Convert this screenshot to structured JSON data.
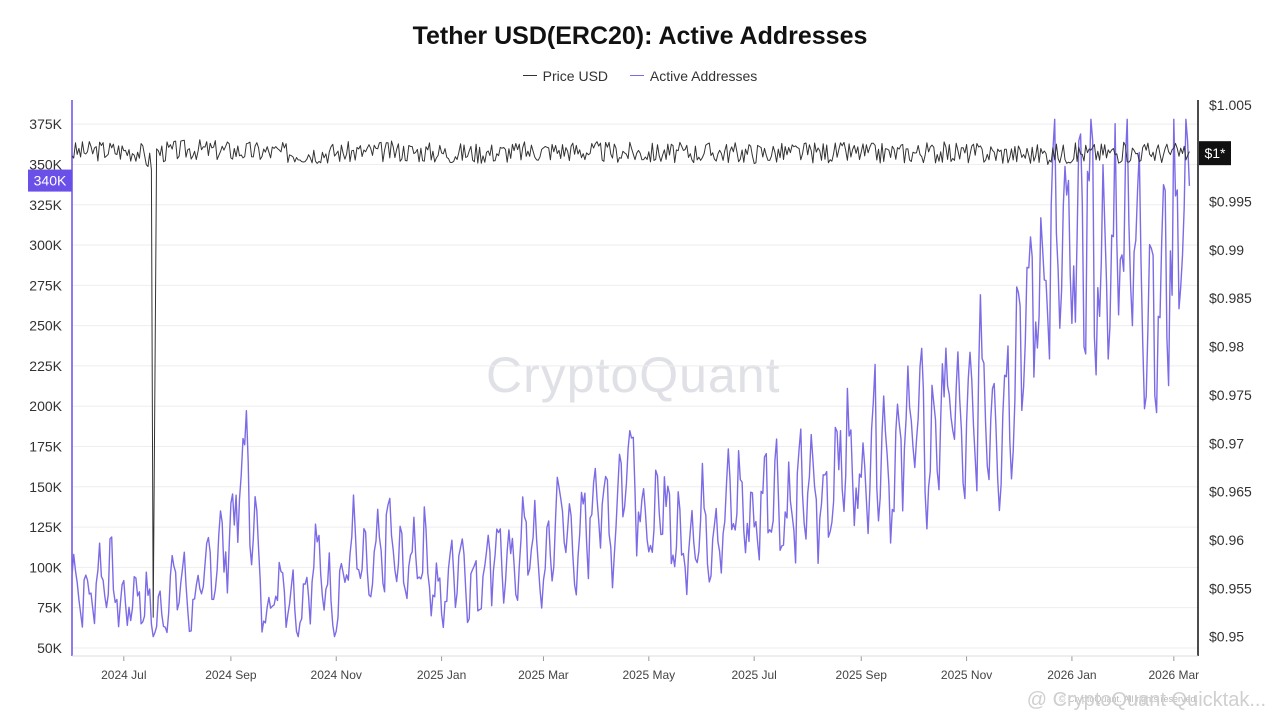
{
  "chart_data": {
    "type": "line",
    "title": "Tether USD(ERC20): Active Addresses",
    "legend": {
      "placement": "top-center",
      "entries": [
        "Price USD",
        "Active Addresses"
      ]
    },
    "colors": {
      "price": "#333333",
      "active_addresses": "#7b6be6",
      "marker_left": "#6a4fe8",
      "marker_right": "#111111"
    },
    "x_range": [
      "2024-06-01",
      "2026-03-15"
    ],
    "x_ticks": [
      {
        "label": "2024 Jul",
        "date": "2024-07-01"
      },
      {
        "label": "2024 Sep",
        "date": "2024-09-01"
      },
      {
        "label": "2024 Nov",
        "date": "2024-11-01"
      },
      {
        "label": "2025 Jan",
        "date": "2025-01-01"
      },
      {
        "label": "2025 Mar",
        "date": "2025-03-01"
      },
      {
        "label": "2025 May",
        "date": "2025-05-01"
      },
      {
        "label": "2025 Jul",
        "date": "2025-07-01"
      },
      {
        "label": "2025 Sep",
        "date": "2025-09-01"
      },
      {
        "label": "2025 Nov",
        "date": "2025-11-01"
      },
      {
        "label": "2026 Jan",
        "date": "2026-01-01"
      },
      {
        "label": "2026 Mar",
        "date": "2026-03-01"
      }
    ],
    "y_left": {
      "range": [
        45000,
        390000
      ],
      "ticks": [
        {
          "value": 50000,
          "label": "50K"
        },
        {
          "value": 75000,
          "label": "75K"
        },
        {
          "value": 100000,
          "label": "100K"
        },
        {
          "value": 125000,
          "label": "125K"
        },
        {
          "value": 150000,
          "label": "150K"
        },
        {
          "value": 175000,
          "label": "175K"
        },
        {
          "value": 200000,
          "label": "200K"
        },
        {
          "value": 225000,
          "label": "225K"
        },
        {
          "value": 250000,
          "label": "250K"
        },
        {
          "value": 275000,
          "label": "275K"
        },
        {
          "value": 300000,
          "label": "300K"
        },
        {
          "value": 325000,
          "label": "325K"
        },
        {
          "value": 350000,
          "label": "350K"
        },
        {
          "value": 375000,
          "label": "375K"
        }
      ],
      "current_marker": {
        "value": 340000,
        "label": "340K"
      }
    },
    "y_right": {
      "range": [
        0.948,
        1.0055
      ],
      "ticks": [
        {
          "value": 0.95,
          "label": "$0.95"
        },
        {
          "value": 0.955,
          "label": "$0.955"
        },
        {
          "value": 0.96,
          "label": "$0.96"
        },
        {
          "value": 0.965,
          "label": "$0.965"
        },
        {
          "value": 0.97,
          "label": "$0.97"
        },
        {
          "value": 0.975,
          "label": "$0.975"
        },
        {
          "value": 0.98,
          "label": "$0.98"
        },
        {
          "value": 0.985,
          "label": "$0.985"
        },
        {
          "value": 0.99,
          "label": "$0.99"
        },
        {
          "value": 0.995,
          "label": "$0.995"
        },
        {
          "value": 1.005,
          "label": "$1.005"
        }
      ],
      "current_marker": {
        "value": 1.0,
        "label": "$1*"
      }
    },
    "grid": true,
    "series": [
      {
        "name": "Active Addresses",
        "axis": "left",
        "points": [
          [
            "2024-06-01",
            95000
          ],
          [
            "2024-06-10",
            80000
          ],
          [
            "2024-06-20",
            100000
          ],
          [
            "2024-07-01",
            75000
          ],
          [
            "2024-07-10",
            85000
          ],
          [
            "2024-07-20",
            65000
          ],
          [
            "2024-08-01",
            95000
          ],
          [
            "2024-08-10",
            75000
          ],
          [
            "2024-08-20",
            100000
          ],
          [
            "2024-09-01",
            120000
          ],
          [
            "2024-09-10",
            170000
          ],
          [
            "2024-09-20",
            70000
          ],
          [
            "2024-10-01",
            95000
          ],
          [
            "2024-10-10",
            70000
          ],
          [
            "2024-10-20",
            105000
          ],
          [
            "2024-11-01",
            75000
          ],
          [
            "2024-11-10",
            115000
          ],
          [
            "2024-11-20",
            90000
          ],
          [
            "2024-12-01",
            120000
          ],
          [
            "2024-12-10",
            95000
          ],
          [
            "2024-12-20",
            115000
          ],
          [
            "2025-01-01",
            75000
          ],
          [
            "2025-01-10",
            110000
          ],
          [
            "2025-01-20",
            85000
          ],
          [
            "2025-02-01",
            115000
          ],
          [
            "2025-02-10",
            95000
          ],
          [
            "2025-02-20",
            125000
          ],
          [
            "2025-03-01",
            90000
          ],
          [
            "2025-03-10",
            140000
          ],
          [
            "2025-03-20",
            105000
          ],
          [
            "2025-04-01",
            150000
          ],
          [
            "2025-04-10",
            120000
          ],
          [
            "2025-04-20",
            180000
          ],
          [
            "2025-05-01",
            115000
          ],
          [
            "2025-05-10",
            140000
          ],
          [
            "2025-05-20",
            110000
          ],
          [
            "2025-06-01",
            130000
          ],
          [
            "2025-06-10",
            120000
          ],
          [
            "2025-06-20",
            145000
          ],
          [
            "2025-07-01",
            125000
          ],
          [
            "2025-07-10",
            155000
          ],
          [
            "2025-07-20",
            130000
          ],
          [
            "2025-08-01",
            150000
          ],
          [
            "2025-08-10",
            135000
          ],
          [
            "2025-08-20",
            175000
          ],
          [
            "2025-09-01",
            150000
          ],
          [
            "2025-09-10",
            190000
          ],
          [
            "2025-09-20",
            155000
          ],
          [
            "2025-10-01",
            200000
          ],
          [
            "2025-10-10",
            165000
          ],
          [
            "2025-10-20",
            210000
          ],
          [
            "2025-11-01",
            175000
          ],
          [
            "2025-11-10",
            215000
          ],
          [
            "2025-11-20",
            185000
          ],
          [
            "2025-12-01",
            240000
          ],
          [
            "2025-12-10",
            265000
          ],
          [
            "2025-12-20",
            300000
          ],
          [
            "2026-01-01",
            285000
          ],
          [
            "2026-01-10",
            320000
          ],
          [
            "2026-01-20",
            270000
          ],
          [
            "2026-02-01",
            335000
          ],
          [
            "2026-02-10",
            280000
          ],
          [
            "2026-02-20",
            260000
          ],
          [
            "2026-03-01",
            310000
          ],
          [
            "2026-03-10",
            340000
          ]
        ]
      },
      {
        "name": "Price USD",
        "axis": "right",
        "points": [
          [
            "2024-06-01",
            1.0001
          ],
          [
            "2024-06-20",
            1.0003
          ],
          [
            "2024-07-10",
            1.0002
          ],
          [
            "2024-07-17",
            0.999
          ],
          [
            "2024-07-18",
            0.952
          ],
          [
            "2024-07-20",
            1.0001
          ],
          [
            "2024-08-10",
            1.0004
          ],
          [
            "2024-09-10",
            1.0002
          ],
          [
            "2024-10-10",
            1.0
          ],
          [
            "2024-11-10",
            1.0001
          ],
          [
            "2024-12-10",
            1.0002
          ],
          [
            "2025-01-10",
            1.0
          ],
          [
            "2025-02-10",
            1.0001
          ],
          [
            "2025-03-10",
            1.0003
          ],
          [
            "2025-04-10",
            1.0001
          ],
          [
            "2025-05-10",
            1.0
          ],
          [
            "2025-06-10",
            1.0001
          ],
          [
            "2025-07-10",
            1.0
          ],
          [
            "2025-08-10",
            1.0001
          ],
          [
            "2025-09-10",
            1.0
          ],
          [
            "2025-10-10",
            1.0001
          ],
          [
            "2025-11-10",
            1.0
          ],
          [
            "2025-12-10",
            0.9999
          ],
          [
            "2026-01-10",
            1.0
          ],
          [
            "2026-02-10",
            1.0001
          ],
          [
            "2026-03-10",
            1.0
          ]
        ]
      }
    ]
  },
  "watermark": "CryptoQuant",
  "footer": {
    "credit": "@ CryptoQuant Quicktak...",
    "sub": "© CryptoQuant. All rights reserved."
  }
}
